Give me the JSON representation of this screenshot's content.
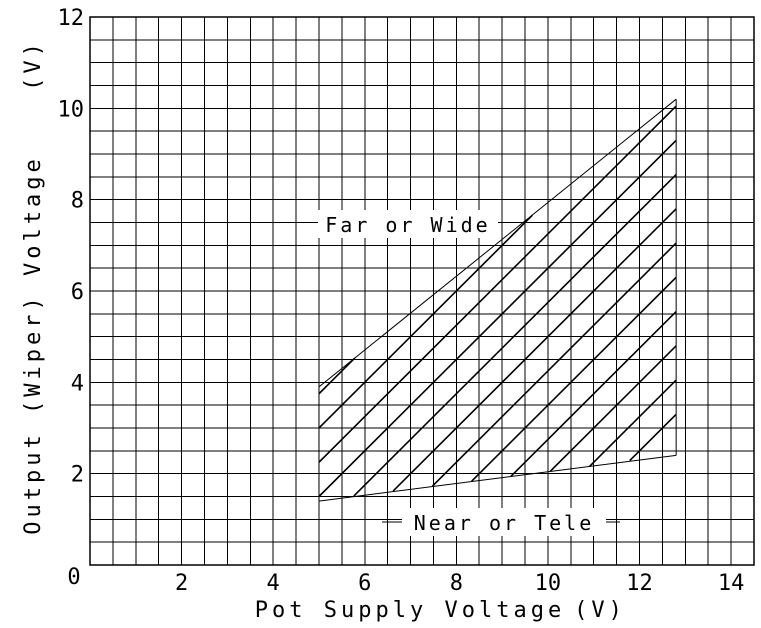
{
  "chart_data": {
    "type": "area",
    "title": "",
    "xlabel": "Pot Supply Voltage",
    "xunit": "(V)",
    "ylabel": "Output (Wiper) Voltage",
    "yunit": "(V)",
    "xlim": [
      0,
      14.5
    ],
    "ylim": [
      0,
      12
    ],
    "origin_label": "0",
    "x_ticks": [
      2,
      4,
      6,
      8,
      10,
      12,
      14
    ],
    "y_ticks": [
      2,
      4,
      6,
      8,
      10,
      12
    ],
    "grid": true,
    "series": [
      {
        "name": "Far or Wide",
        "x": [
          5,
          12.8
        ],
        "y": [
          3.9,
          10.2
        ]
      },
      {
        "name": "Near or Tele",
        "x": [
          5,
          12.8
        ],
        "y": [
          1.4,
          2.4
        ]
      }
    ],
    "shaded_region": {
      "x_range": [
        5,
        12.8
      ],
      "between": [
        "Near or Tele",
        "Far or Wide"
      ],
      "fill": "diagonal-hatch"
    }
  }
}
